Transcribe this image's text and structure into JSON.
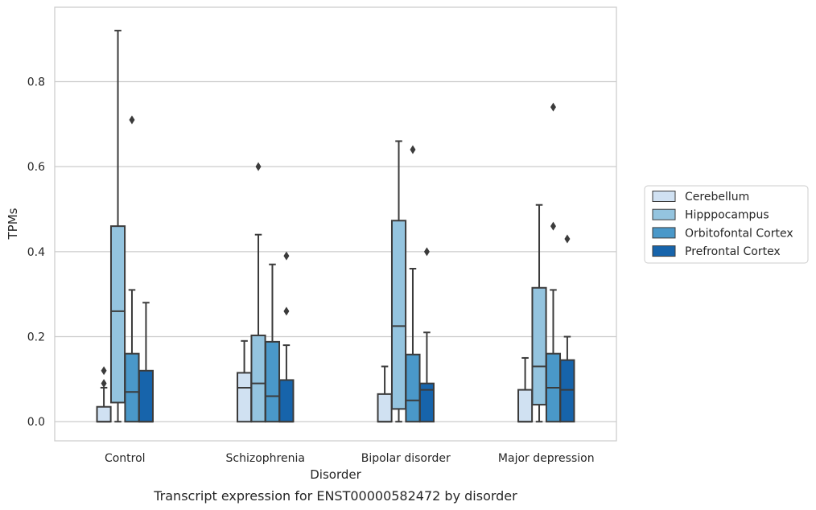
{
  "chart_data": {
    "type": "box",
    "title": "",
    "caption": "Transcript expression for ENST00000582472 by disorder",
    "xlabel": "Disorder",
    "ylabel": "TPMs",
    "ylim": [
      -0.045,
      0.975
    ],
    "yticks": [
      0.0,
      0.2,
      0.4,
      0.6,
      0.8
    ],
    "ytick_labels": [
      "0.0",
      "0.2",
      "0.4",
      "0.6",
      "0.8"
    ],
    "grid": true,
    "legend_position": "right",
    "categories": [
      "Control",
      "Schizophrenia",
      "Bipolar disorder",
      "Major depression"
    ],
    "series": [
      {
        "name": "Cerebellum",
        "color": "#d0e1f2",
        "boxes": [
          {
            "min": 0.0,
            "q1": 0.0,
            "median": 0.0,
            "q3": 0.035,
            "max": 0.08,
            "outliers": [
              0.09,
              0.12
            ]
          },
          {
            "min": 0.0,
            "q1": 0.0,
            "median": 0.08,
            "q3": 0.115,
            "max": 0.19,
            "outliers": []
          },
          {
            "min": 0.0,
            "q1": 0.0,
            "median": 0.0,
            "q3": 0.065,
            "max": 0.13,
            "outliers": []
          },
          {
            "min": 0.0,
            "q1": 0.0,
            "median": 0.0,
            "q3": 0.075,
            "max": 0.15,
            "outliers": []
          }
        ]
      },
      {
        "name": "Hipppocampus",
        "color": "#94c4df",
        "boxes": [
          {
            "min": 0.0,
            "q1": 0.045,
            "median": 0.26,
            "q3": 0.46,
            "max": 0.92,
            "outliers": []
          },
          {
            "min": 0.0,
            "q1": 0.0,
            "median": 0.09,
            "q3": 0.203,
            "max": 0.44,
            "outliers": [
              0.6
            ]
          },
          {
            "min": 0.0,
            "q1": 0.03,
            "median": 0.225,
            "q3": 0.473,
            "max": 0.66,
            "outliers": []
          },
          {
            "min": 0.0,
            "q1": 0.04,
            "median": 0.13,
            "q3": 0.315,
            "max": 0.51,
            "outliers": []
          }
        ]
      },
      {
        "name": "Orbitofontal Cortex",
        "color": "#4a98c9",
        "boxes": [
          {
            "min": 0.0,
            "q1": 0.0,
            "median": 0.07,
            "q3": 0.16,
            "max": 0.31,
            "outliers": [
              0.71
            ]
          },
          {
            "min": 0.0,
            "q1": 0.0,
            "median": 0.06,
            "q3": 0.188,
            "max": 0.37,
            "outliers": []
          },
          {
            "min": 0.0,
            "q1": 0.0,
            "median": 0.05,
            "q3": 0.158,
            "max": 0.36,
            "outliers": [
              0.64
            ]
          },
          {
            "min": 0.0,
            "q1": 0.0,
            "median": 0.08,
            "q3": 0.16,
            "max": 0.31,
            "outliers": [
              0.46,
              0.74
            ]
          }
        ]
      },
      {
        "name": "Prefrontal Cortex",
        "color": "#1764ab",
        "boxes": [
          {
            "min": 0.0,
            "q1": 0.0,
            "median": 0.0,
            "q3": 0.12,
            "max": 0.28,
            "outliers": []
          },
          {
            "min": 0.0,
            "q1": 0.0,
            "median": 0.0,
            "q3": 0.098,
            "max": 0.18,
            "outliers": [
              0.26,
              0.39
            ]
          },
          {
            "min": 0.0,
            "q1": 0.0,
            "median": 0.075,
            "q3": 0.09,
            "max": 0.21,
            "outliers": [
              0.4
            ]
          },
          {
            "min": 0.0,
            "q1": 0.0,
            "median": 0.075,
            "q3": 0.145,
            "max": 0.2,
            "outliers": [
              0.43
            ]
          }
        ]
      }
    ]
  }
}
